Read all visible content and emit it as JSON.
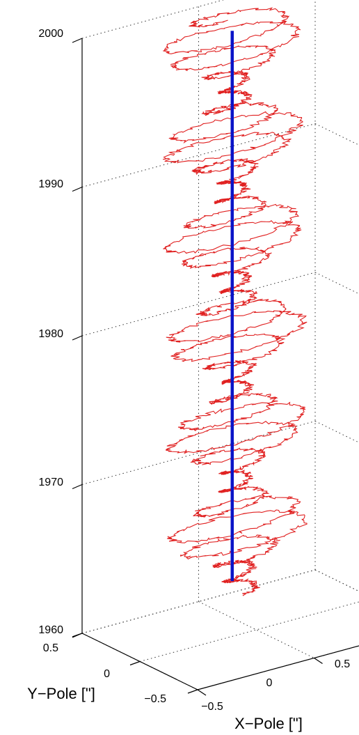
{
  "chart_data": {
    "type": "line",
    "projection": "3d",
    "axes": {
      "x": {
        "label": "X−Pole [\"]",
        "range": [
          -0.5,
          0.5
        ],
        "ticks": [
          -0.5,
          0,
          0.5
        ],
        "tick_labels": [
          "−0.5",
          "0",
          "0.5"
        ]
      },
      "y": {
        "label": "Y−Pole [\"]",
        "range": [
          -0.5,
          0.5
        ],
        "ticks": [
          -0.5,
          0,
          0.5
        ],
        "tick_labels": [
          "−0.5",
          "0",
          "0.5"
        ]
      },
      "z": {
        "label": "",
        "range": [
          1960,
          2000
        ],
        "ticks": [
          1960,
          1970,
          1980,
          1990,
          2000
        ],
        "tick_labels": [
          "1960",
          "1970",
          "1980",
          "1990",
          "2000"
        ]
      }
    },
    "grid": true,
    "colors": {
      "polar_motion": "#e02020",
      "mean_pole": "#0a14c8"
    },
    "series": [
      {
        "kind": "polar-motion-spiral",
        "color": "#e02020",
        "z_range": [
          1962,
          2000
        ],
        "beat_period_years": 6.4,
        "amplitude_x_range": [
          0.05,
          0.28
        ],
        "center_x": [
          0.0,
          0.05
        ],
        "center_y": [
          0.15,
          0.32
        ]
      },
      {
        "kind": "mean-pole-line",
        "color": "#0a14c8",
        "points": [
          {
            "x": 0.04,
            "y": 0.29,
            "z": 1962
          },
          {
            "x": 0.04,
            "y": 0.29,
            "z": 1999
          }
        ]
      }
    ]
  }
}
